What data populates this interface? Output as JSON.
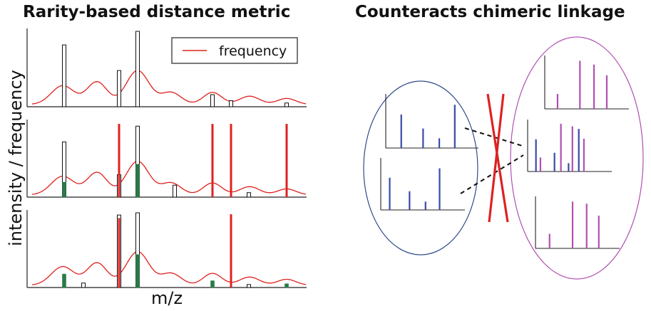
{
  "titles": {
    "left": "Rarity-based distance metric",
    "right": "Counteracts chimeric linkage"
  },
  "axes": {
    "xlabel": "m/z",
    "ylabel": "intensity / frequency"
  },
  "legend": {
    "label": "frequency"
  },
  "colors": {
    "frequency_curve": "#e0201c",
    "rare_peak": "#dd2222",
    "matched_fill": "#2a7a48",
    "reference_outline": "#111111",
    "blue_peaks": "#3a4aa8",
    "purple_peaks": "#b050b0",
    "left_cluster_ellipse": "#2e4a8a",
    "right_cluster_ellipse": "#b050b0",
    "cross": "#dd2222"
  },
  "chart_data": {
    "type": "bar",
    "x_peaks": [
      90,
      117,
      167,
      193,
      245,
      298,
      324,
      349,
      402
    ],
    "reference_spectrum": [
      0.82,
      0,
      0.48,
      1.0,
      0,
      0.16,
      0.08,
      0,
      0.05
    ],
    "spectrum_2": {
      "reference_overlay": [
        0.74,
        0,
        0.3,
        0.95,
        0.16,
        0,
        0,
        0.06,
        0
      ],
      "matched": [
        0.2,
        0,
        0,
        0.44,
        0,
        0,
        0,
        0,
        0
      ],
      "rare": [
        0,
        0,
        0.98,
        0,
        0,
        0.98,
        0.98,
        0,
        0.98
      ]
    },
    "spectrum_3": {
      "reference_overlay": [
        0,
        0.06,
        0.97,
        1.0,
        0,
        0,
        0,
        0.04,
        0
      ],
      "matched": [
        0.18,
        0,
        0,
        0.44,
        0,
        0.09,
        0,
        0,
        0.05
      ],
      "rare": [
        0,
        0,
        0.93,
        0,
        0,
        0,
        0.98,
        0,
        0
      ]
    },
    "frequency_curve_peaks": [
      {
        "x": 88,
        "amp": 0.25,
        "w": 16
      },
      {
        "x": 136,
        "amp": 0.3,
        "w": 14
      },
      {
        "x": 193,
        "amp": 0.45,
        "w": 16
      },
      {
        "x": 240,
        "amp": 0.16,
        "w": 14
      },
      {
        "x": 298,
        "amp": 0.16,
        "w": 13
      },
      {
        "x": 350,
        "amp": 0.11,
        "w": 14
      },
      {
        "x": 402,
        "amp": 0.08,
        "w": 13
      }
    ],
    "frequency_curve_base": 0.03
  },
  "diagram": {
    "left_cluster_spectra": [
      {
        "color": "blue",
        "peaks": [
          {
            "x": 0.22,
            "h": 0.62
          },
          {
            "x": 0.53,
            "h": 0.36
          },
          {
            "x": 0.76,
            "h": 0.18
          },
          {
            "x": 0.98,
            "h": 0.8
          }
        ]
      },
      {
        "color": "blue",
        "peaks": [
          {
            "x": 0.14,
            "h": 0.62
          },
          {
            "x": 0.45,
            "h": 0.36
          },
          {
            "x": 0.7,
            "h": 0.16
          },
          {
            "x": 0.92,
            "h": 0.8
          }
        ]
      }
    ],
    "right_cluster_spectra": [
      {
        "peaks": [
          {
            "x": 0.2,
            "h": 0.28,
            "c": "purple"
          },
          {
            "x": 0.55,
            "h": 0.9,
            "c": "purple"
          },
          {
            "x": 0.77,
            "h": 0.83,
            "c": "purple"
          },
          {
            "x": 0.97,
            "h": 0.63,
            "c": "purple"
          }
        ]
      },
      {
        "peaks": [
          {
            "x": 0.13,
            "h": 0.62,
            "c": "blue"
          },
          {
            "x": 0.2,
            "h": 0.27,
            "c": "purple"
          },
          {
            "x": 0.42,
            "h": 0.36,
            "c": "blue"
          },
          {
            "x": 0.52,
            "h": 0.92,
            "c": "purple"
          },
          {
            "x": 0.64,
            "h": 0.16,
            "c": "blue"
          },
          {
            "x": 0.7,
            "h": 0.87,
            "c": "purple"
          },
          {
            "x": 0.8,
            "h": 0.82,
            "c": "blue"
          },
          {
            "x": 0.88,
            "h": 0.63,
            "c": "purple"
          }
        ]
      },
      {
        "peaks": [
          {
            "x": 0.22,
            "h": 0.28,
            "c": "purple"
          },
          {
            "x": 0.58,
            "h": 0.9,
            "c": "purple"
          },
          {
            "x": 0.8,
            "h": 0.86,
            "c": "purple"
          },
          {
            "x": 0.99,
            "h": 0.63,
            "c": "purple"
          }
        ]
      }
    ]
  }
}
